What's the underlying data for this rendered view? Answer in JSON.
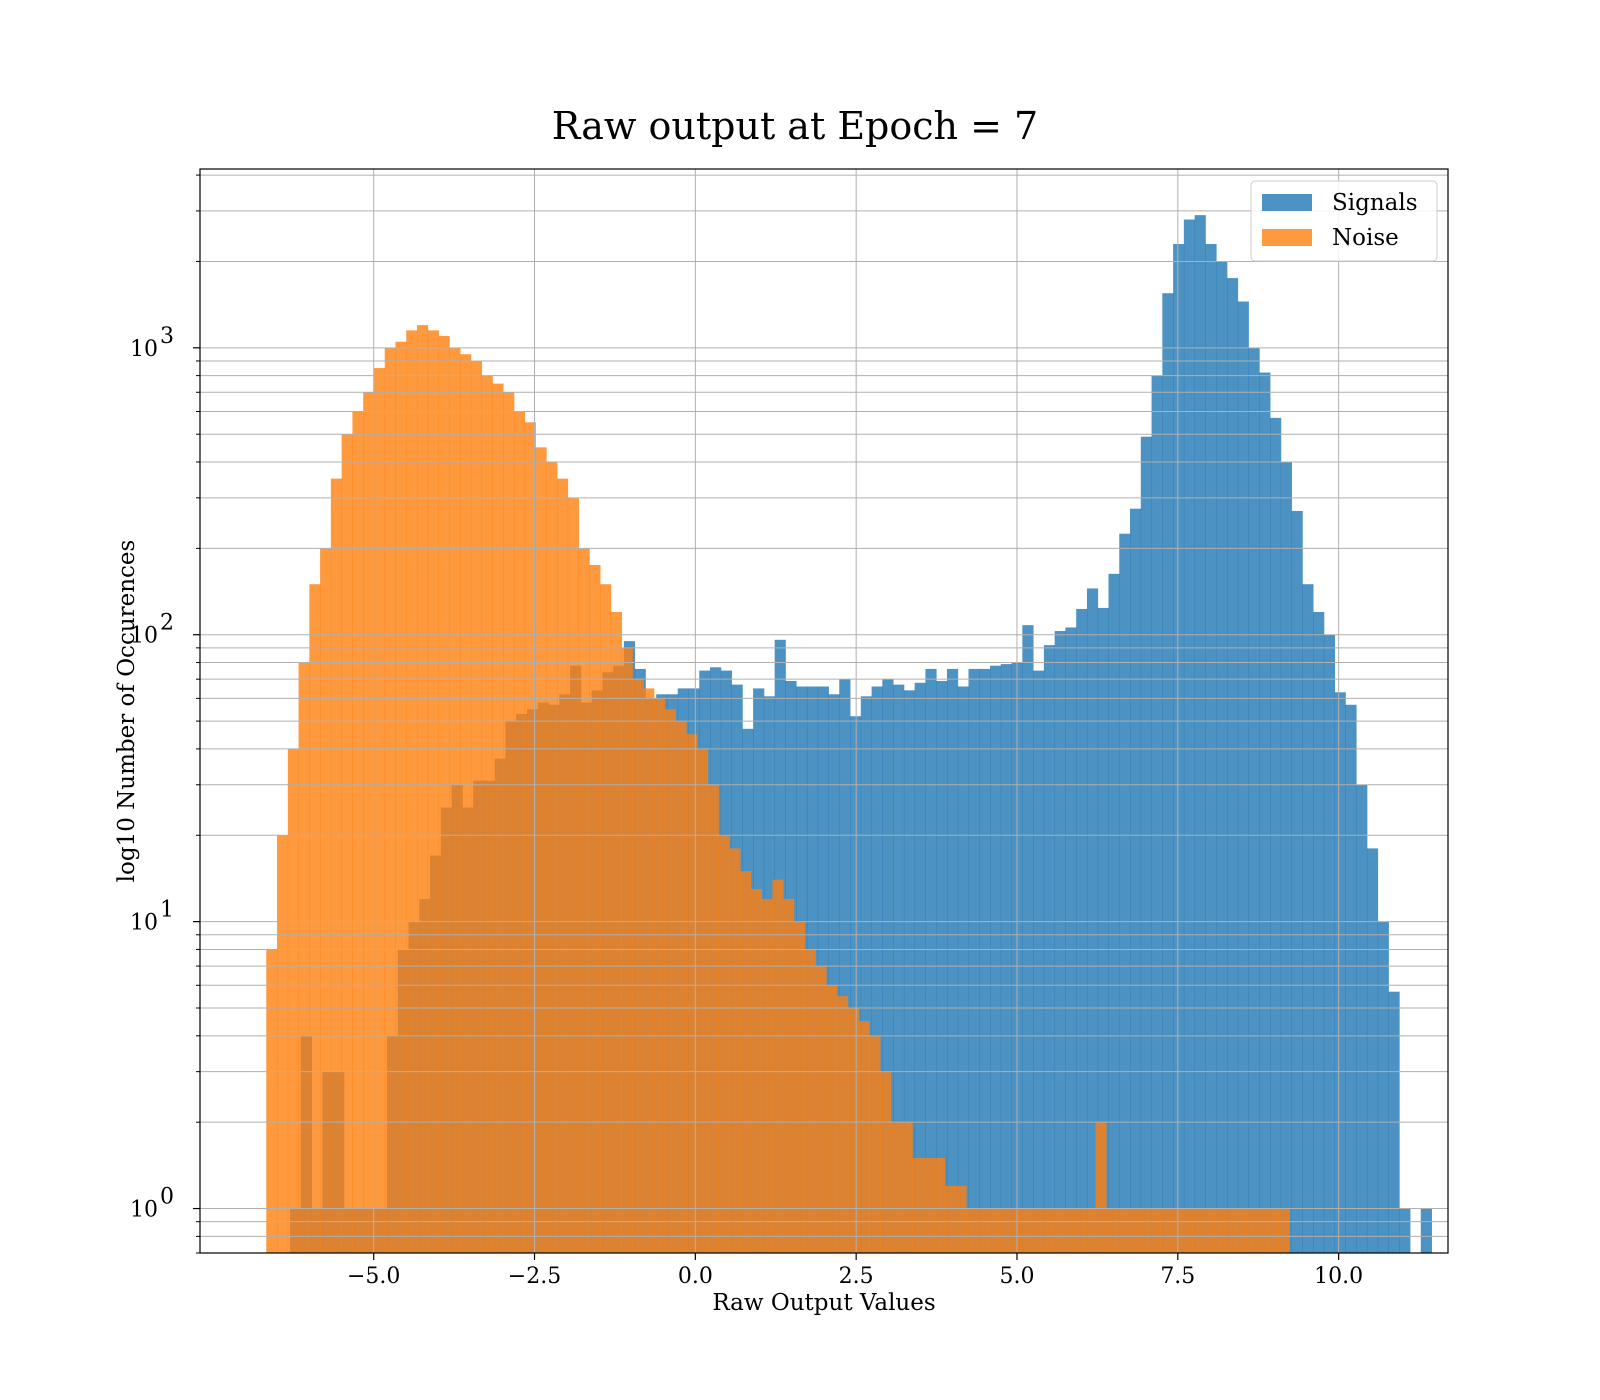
{
  "chart_data": {
    "type": "histogram",
    "title": "Raw output at Epoch = 7",
    "xlabel": "Raw Output Values",
    "ylabel": "log10 Number of Occurences",
    "xlim": [
      -7.7,
      11.7
    ],
    "ylim": [
      0.7,
      4200
    ],
    "yscale": "log",
    "grid": true,
    "legend_position": "top-right",
    "x_ticks": [
      -5.0,
      -2.5,
      0.0,
      2.5,
      5.0,
      7.5,
      10.0
    ],
    "x_tick_labels": [
      "−5.0",
      "−2.5",
      "0.0",
      "2.5",
      "5.0",
      "7.5",
      "10.0"
    ],
    "y_ticks": [
      1,
      10,
      100,
      1000
    ],
    "y_tick_labels": [
      {
        "base": "10",
        "exp": "0"
      },
      {
        "base": "10",
        "exp": "1"
      },
      {
        "base": "10",
        "exp": "2"
      },
      {
        "base": "10",
        "exp": "3"
      }
    ],
    "series": [
      {
        "name": "Signals",
        "color": "#1f77b4",
        "alpha": 0.8,
        "bin_start": -6.3,
        "bin_width": 0.1674,
        "counts": [
          1,
          4,
          1,
          3,
          3,
          1,
          1,
          1,
          1,
          4,
          8,
          10,
          12,
          17,
          25,
          30,
          25,
          31,
          31,
          37,
          50,
          53,
          55,
          58,
          57,
          62,
          78,
          58,
          64,
          74,
          78,
          95,
          76,
          60,
          62,
          62,
          65,
          65,
          75,
          77,
          75,
          67,
          47,
          65,
          61,
          96,
          69,
          66,
          66,
          66,
          62,
          70,
          52,
          61,
          66,
          70,
          67,
          64,
          68,
          76,
          69,
          76,
          66,
          76,
          76,
          78,
          79,
          80,
          108,
          75,
          92,
          103,
          106,
          123,
          145,
          124,
          163,
          225,
          275,
          490,
          800,
          1550,
          2300,
          2800,
          2900,
          2300,
          2000,
          1750,
          1450,
          1000,
          820,
          570,
          400,
          270,
          150,
          120,
          100,
          63,
          57,
          30,
          18,
          10,
          5.7,
          1,
          0,
          1
        ]
      },
      {
        "name": "Noise",
        "color": "#ff7f0e",
        "alpha": 0.8,
        "bin_start": -6.67,
        "bin_width": 0.1674,
        "counts": [
          8,
          20,
          40,
          80,
          150,
          200,
          350,
          500,
          600,
          700,
          850,
          1000,
          1050,
          1150,
          1200,
          1150,
          1100,
          1000,
          950,
          900,
          800,
          750,
          700,
          600,
          550,
          450,
          400,
          350,
          300,
          200,
          175,
          150,
          120,
          90,
          70,
          65,
          60,
          55,
          50,
          45,
          40,
          30,
          20,
          18,
          15,
          13,
          12,
          14,
          12,
          10,
          8,
          7,
          6,
          5.5,
          5,
          4.5,
          4,
          3,
          2,
          2,
          1.5,
          1.5,
          1.5,
          1.2,
          1.2,
          1,
          1,
          1,
          1,
          1,
          1,
          1,
          1,
          1,
          1,
          1,
          1,
          2,
          1,
          1,
          1,
          1,
          1,
          1,
          1,
          1,
          1,
          1,
          1,
          1,
          1,
          1,
          1,
          1,
          1
        ]
      }
    ]
  }
}
